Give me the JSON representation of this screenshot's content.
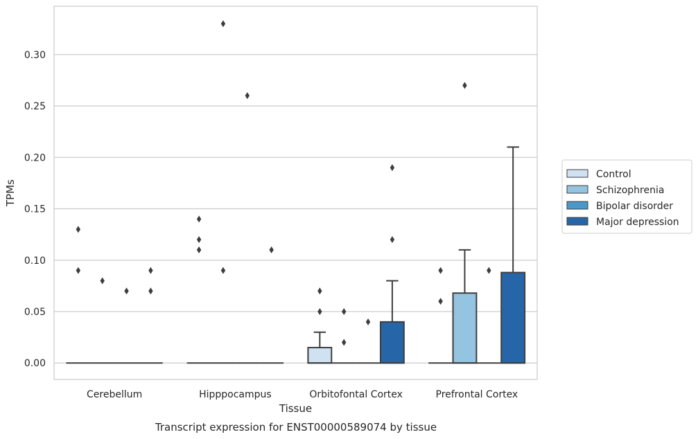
{
  "chart_data": {
    "type": "box",
    "title": "",
    "caption": "Transcript expression for ENST00000589074 by tissue",
    "xlabel": "Tissue",
    "ylabel": "TPMs",
    "ylim": [
      -0.016,
      0.347
    ],
    "yticks": [
      0.0,
      0.05,
      0.1,
      0.15,
      0.2,
      0.25,
      0.3
    ],
    "ytick_labels": [
      "0.00",
      "0.05",
      "0.10",
      "0.15",
      "0.20",
      "0.25",
      "0.30"
    ],
    "grid": true,
    "legend_position": "right",
    "categories": [
      "Cerebellum",
      "Hipppocampus",
      "Orbitofontal Cortex",
      "Prefrontal Cortex"
    ],
    "series": [
      {
        "name": "Control",
        "color": "#d0e1f2",
        "boxes": [
          {
            "q1": 0,
            "median": 0,
            "q3": 0,
            "whisker_low": 0,
            "whisker_high": 0,
            "outliers": [
              0.13,
              0.09
            ]
          },
          {
            "q1": 0,
            "median": 0,
            "q3": 0,
            "whisker_low": 0,
            "whisker_high": 0,
            "outliers": [
              0.14,
              0.12,
              0.11
            ]
          },
          {
            "q1": 0,
            "median": 0,
            "q3": 0.015,
            "whisker_low": 0,
            "whisker_high": 0.03,
            "outliers": [
              0.07,
              0.05
            ]
          },
          {
            "q1": 0,
            "median": 0,
            "q3": 0,
            "whisker_low": 0,
            "whisker_high": 0,
            "outliers": [
              0.09,
              0.06
            ]
          }
        ]
      },
      {
        "name": "Schizophrenia",
        "color": "#94c4df",
        "boxes": [
          {
            "q1": 0,
            "median": 0,
            "q3": 0,
            "whisker_low": 0,
            "whisker_high": 0,
            "outliers": [
              0.08
            ]
          },
          {
            "q1": 0,
            "median": 0,
            "q3": 0,
            "whisker_low": 0,
            "whisker_high": 0,
            "outliers": [
              0.33,
              0.09
            ]
          },
          {
            "q1": 0,
            "median": 0,
            "q3": 0,
            "whisker_low": 0,
            "whisker_high": 0,
            "outliers": [
              0.05,
              0.02
            ]
          },
          {
            "q1": 0,
            "median": 0,
            "q3": 0.068,
            "whisker_low": 0,
            "whisker_high": 0.11,
            "outliers": [
              0.27
            ]
          }
        ]
      },
      {
        "name": "Bipolar disorder",
        "color": "#4a98c9",
        "boxes": [
          {
            "q1": 0,
            "median": 0,
            "q3": 0,
            "whisker_low": 0,
            "whisker_high": 0,
            "outliers": [
              0.07
            ]
          },
          {
            "q1": 0,
            "median": 0,
            "q3": 0,
            "whisker_low": 0,
            "whisker_high": 0,
            "outliers": [
              0.26
            ]
          },
          {
            "q1": 0,
            "median": 0,
            "q3": 0,
            "whisker_low": 0,
            "whisker_high": 0,
            "outliers": [
              0.04
            ]
          },
          {
            "q1": 0,
            "median": 0,
            "q3": 0,
            "whisker_low": 0,
            "whisker_high": 0,
            "outliers": [
              0.09
            ]
          }
        ]
      },
      {
        "name": "Major depression",
        "color": "#2666a8",
        "boxes": [
          {
            "q1": 0,
            "median": 0,
            "q3": 0,
            "whisker_low": 0,
            "whisker_high": 0,
            "outliers": [
              0.09,
              0.07
            ]
          },
          {
            "q1": 0,
            "median": 0,
            "q3": 0,
            "whisker_low": 0,
            "whisker_high": 0,
            "outliers": [
              0.11
            ]
          },
          {
            "q1": 0,
            "median": 0,
            "q3": 0.04,
            "whisker_low": 0,
            "whisker_high": 0.08,
            "outliers": [
              0.19,
              0.12
            ]
          },
          {
            "q1": 0,
            "median": 0,
            "q3": 0.088,
            "whisker_low": 0,
            "whisker_high": 0.21,
            "outliers": []
          }
        ]
      }
    ]
  }
}
